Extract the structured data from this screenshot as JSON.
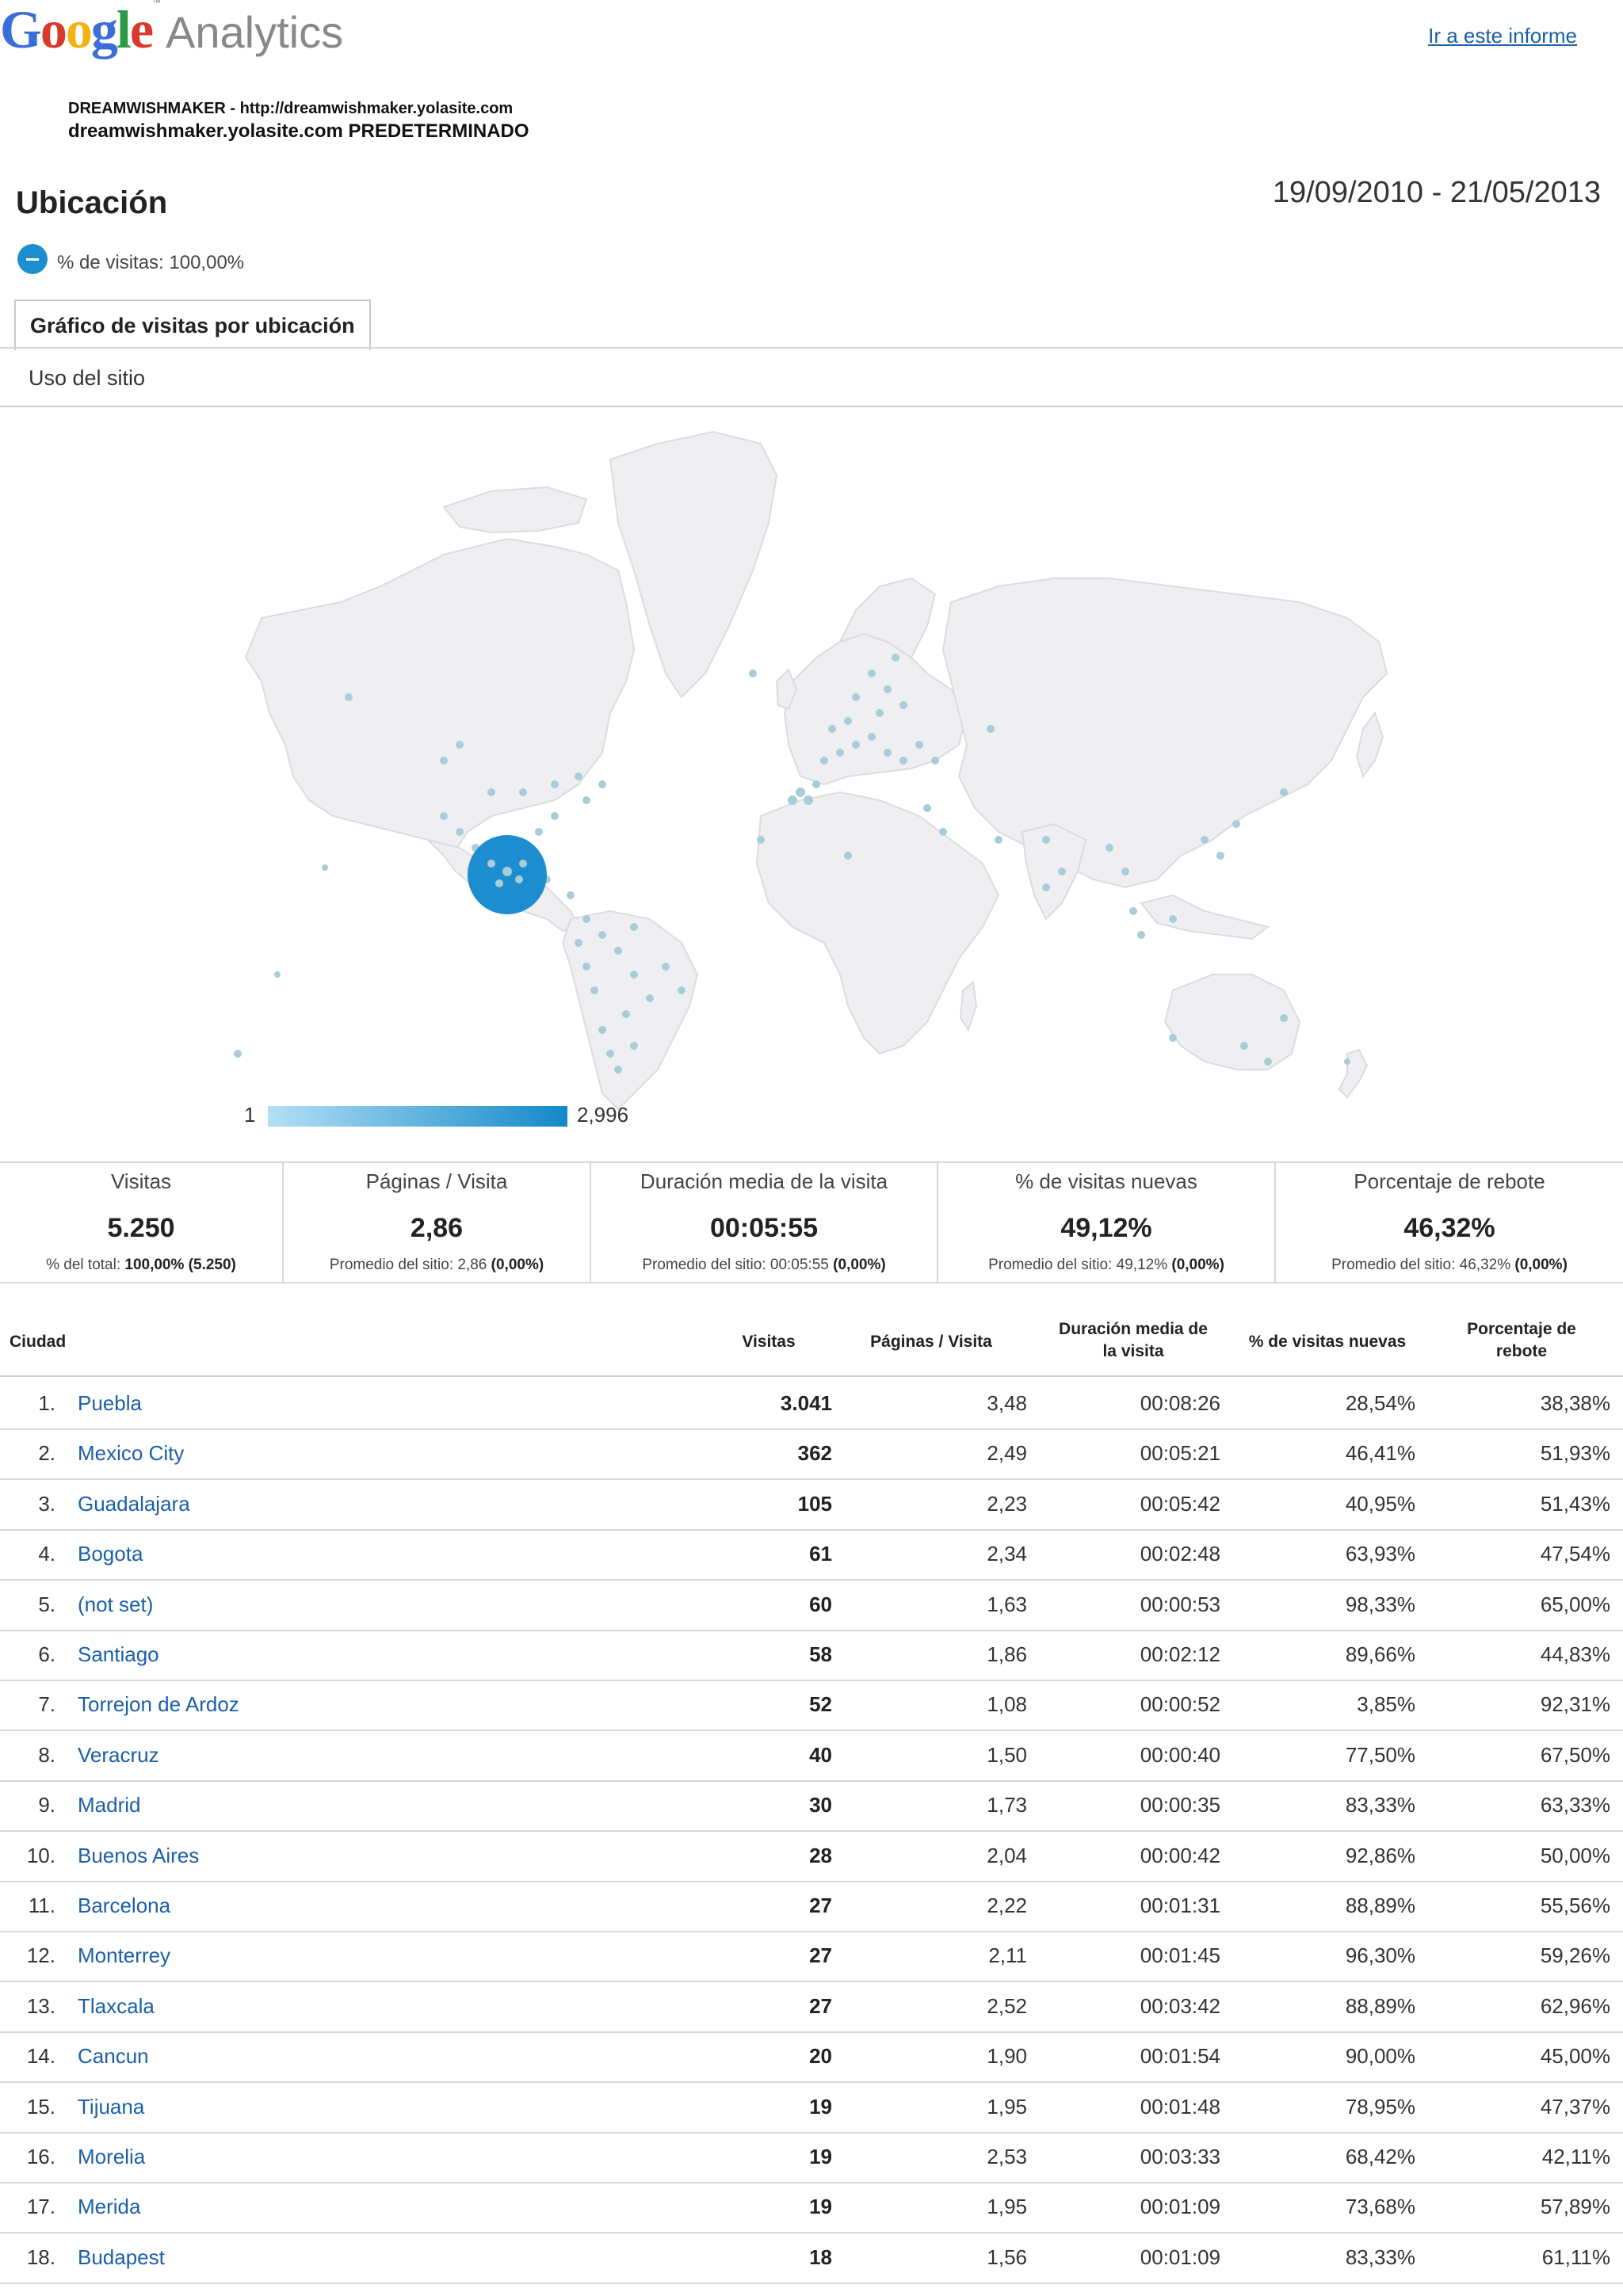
{
  "header": {
    "logo_google": "Google",
    "logo_analytics": "Analytics",
    "report_link": "Ir a este informe",
    "account_line": "DREAMWISHMAKER - http://dreamwishmaker.yolasite.com",
    "profile_line": "dreamwishmaker.yolasite.com PREDETERMINADO",
    "report_title": "Ubicación",
    "date_range": "19/09/2010 - 21/05/2013",
    "segment_label": "% de visitas: 100,00%"
  },
  "tabs": {
    "active": "Gráfico de visitas por ubicación",
    "sub": "Uso del sitio"
  },
  "map": {
    "legend_min": "1",
    "legend_max": "2,996",
    "colors": {
      "land": "#efeef0",
      "border": "#ffffff",
      "dot": "#a9cdd8",
      "big_dot": "#1c8dcf",
      "legend_start": "#b4dff5",
      "legend_end": "#1289ca"
    }
  },
  "summary": [
    {
      "label": "Visitas",
      "value": "5.250",
      "note_prefix": "% del total:",
      "note_value": "100,00% (5.250)"
    },
    {
      "label": "Páginas / Visita",
      "value": "2,86",
      "note_prefix": "Promedio del sitio: 2,86",
      "note_value": "(0,00%)"
    },
    {
      "label": "Duración media de la visita",
      "value": "00:05:55",
      "note_prefix": "Promedio del sitio: 00:05:55",
      "note_value": "(0,00%)"
    },
    {
      "label": "% de visitas nuevas",
      "value": "49,12%",
      "note_prefix": "Promedio del sitio: 49,12%",
      "note_value": "(0,00%)"
    },
    {
      "label": "Porcentaje de rebote",
      "value": "46,32%",
      "note_prefix": "Promedio del sitio: 46,32%",
      "note_value": "(0,00%)"
    }
  ],
  "table": {
    "headers": {
      "city": "Ciudad",
      "visits": "Visitas",
      "pages": "Páginas / Visita",
      "duration_1": "Duración media de",
      "duration_2": "la visita",
      "new": "% de visitas nuevas",
      "bounce_1": "Porcentaje de",
      "bounce_2": "rebote"
    },
    "rows": [
      {
        "idx": "1.",
        "city": "Puebla",
        "visits": "3.041",
        "ppv": "3,48",
        "dur": "00:08:26",
        "new": "28,54%",
        "bounce": "38,38%"
      },
      {
        "idx": "2.",
        "city": "Mexico City",
        "visits": "362",
        "ppv": "2,49",
        "dur": "00:05:21",
        "new": "46,41%",
        "bounce": "51,93%"
      },
      {
        "idx": "3.",
        "city": "Guadalajara",
        "visits": "105",
        "ppv": "2,23",
        "dur": "00:05:42",
        "new": "40,95%",
        "bounce": "51,43%"
      },
      {
        "idx": "4.",
        "city": "Bogota",
        "visits": "61",
        "ppv": "2,34",
        "dur": "00:02:48",
        "new": "63,93%",
        "bounce": "47,54%"
      },
      {
        "idx": "5.",
        "city": "(not set)",
        "visits": "60",
        "ppv": "1,63",
        "dur": "00:00:53",
        "new": "98,33%",
        "bounce": "65,00%"
      },
      {
        "idx": "6.",
        "city": "Santiago",
        "visits": "58",
        "ppv": "1,86",
        "dur": "00:02:12",
        "new": "89,66%",
        "bounce": "44,83%"
      },
      {
        "idx": "7.",
        "city": "Torrejon de Ardoz",
        "visits": "52",
        "ppv": "1,08",
        "dur": "00:00:52",
        "new": "3,85%",
        "bounce": "92,31%"
      },
      {
        "idx": "8.",
        "city": "Veracruz",
        "visits": "40",
        "ppv": "1,50",
        "dur": "00:00:40",
        "new": "77,50%",
        "bounce": "67,50%"
      },
      {
        "idx": "9.",
        "city": "Madrid",
        "visits": "30",
        "ppv": "1,73",
        "dur": "00:00:35",
        "new": "83,33%",
        "bounce": "63,33%"
      },
      {
        "idx": "10.",
        "city": "Buenos Aires",
        "visits": "28",
        "ppv": "2,04",
        "dur": "00:00:42",
        "new": "92,86%",
        "bounce": "50,00%"
      },
      {
        "idx": "11.",
        "city": "Barcelona",
        "visits": "27",
        "ppv": "2,22",
        "dur": "00:01:31",
        "new": "88,89%",
        "bounce": "55,56%"
      },
      {
        "idx": "12.",
        "city": "Monterrey",
        "visits": "27",
        "ppv": "2,11",
        "dur": "00:01:45",
        "new": "96,30%",
        "bounce": "59,26%"
      },
      {
        "idx": "13.",
        "city": "Tlaxcala",
        "visits": "27",
        "ppv": "2,52",
        "dur": "00:03:42",
        "new": "88,89%",
        "bounce": "62,96%"
      },
      {
        "idx": "14.",
        "city": "Cancun",
        "visits": "20",
        "ppv": "1,90",
        "dur": "00:01:54",
        "new": "90,00%",
        "bounce": "45,00%"
      },
      {
        "idx": "15.",
        "city": "Tijuana",
        "visits": "19",
        "ppv": "1,95",
        "dur": "00:01:48",
        "new": "78,95%",
        "bounce": "47,37%"
      },
      {
        "idx": "16.",
        "city": "Morelia",
        "visits": "19",
        "ppv": "2,53",
        "dur": "00:03:33",
        "new": "68,42%",
        "bounce": "42,11%"
      },
      {
        "idx": "17.",
        "city": "Merida",
        "visits": "19",
        "ppv": "1,95",
        "dur": "00:01:09",
        "new": "73,68%",
        "bounce": "57,89%"
      },
      {
        "idx": "18.",
        "city": "Budapest",
        "visits": "18",
        "ppv": "1,56",
        "dur": "00:01:09",
        "new": "83,33%",
        "bounce": "61,11%"
      }
    ]
  }
}
